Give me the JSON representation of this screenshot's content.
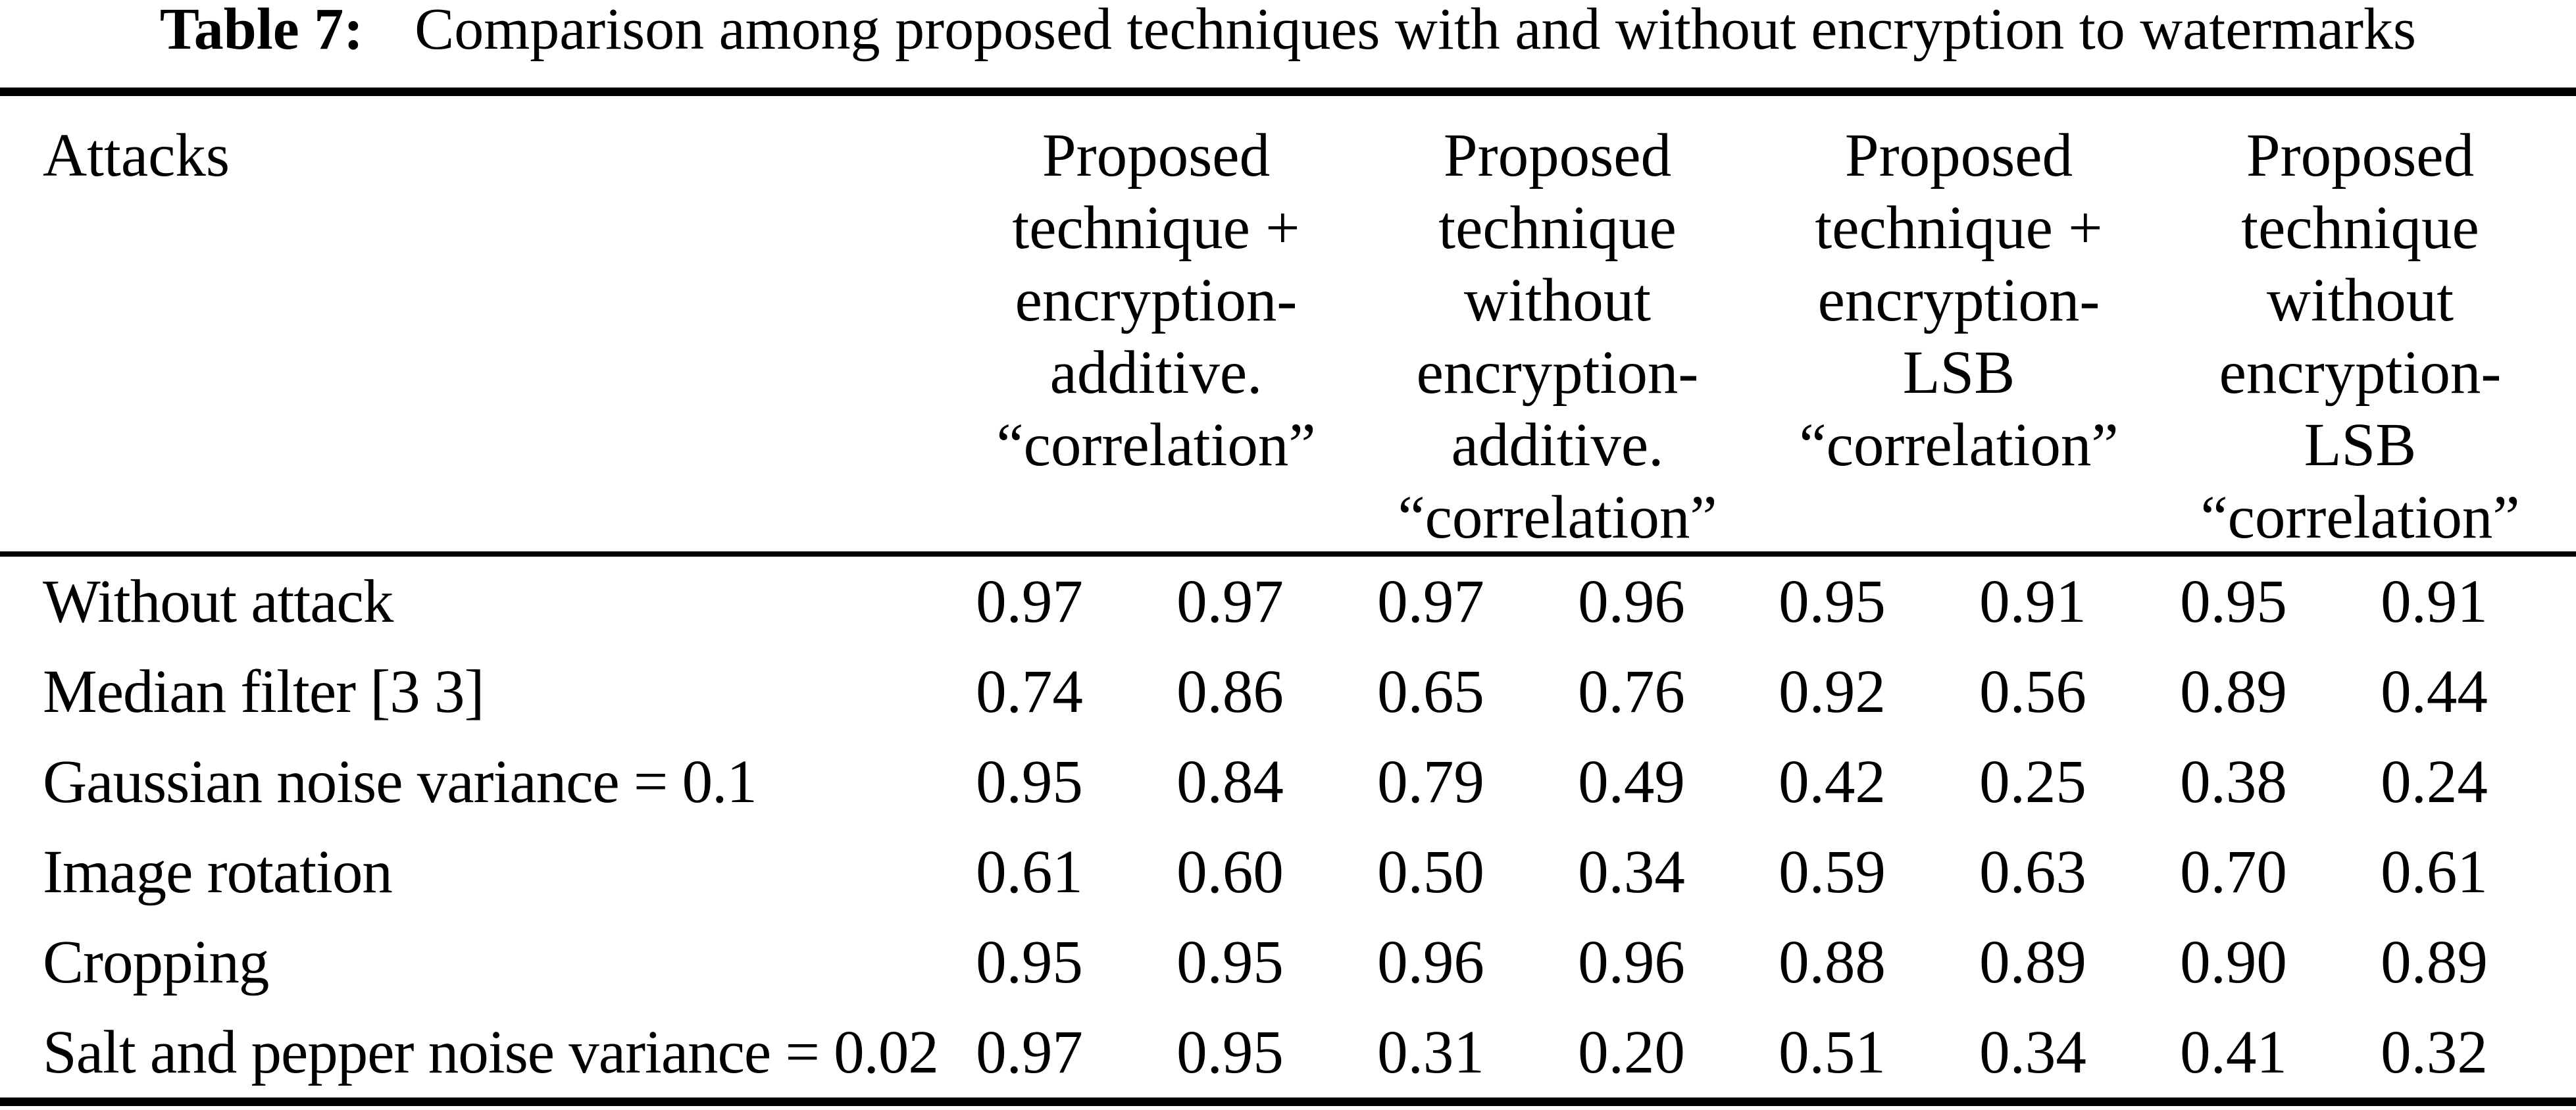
{
  "colors": {
    "ink": "#000000",
    "paper": "#ffffff"
  },
  "caption": {
    "label": "Table 7:",
    "text": "Comparison among proposed techniques with and without encryption to watermarks"
  },
  "table": {
    "attack_column_header": "Attacks",
    "column_groups": [
      {
        "lines": [
          "Proposed",
          "technique +",
          "encryption-",
          "additive.",
          "“correlation”"
        ]
      },
      {
        "lines": [
          "Proposed",
          "technique",
          "without",
          "encryption-",
          "additive.",
          "“correlation”"
        ]
      },
      {
        "lines": [
          "Proposed",
          "technique +",
          "encryption-",
          "LSB",
          "“correlation”"
        ]
      },
      {
        "lines": [
          "Proposed",
          "technique",
          "without",
          "encryption-",
          "LSB",
          "“correlation”"
        ]
      }
    ],
    "rows": [
      {
        "attack": "Without attack",
        "values": [
          "0.97",
          "0.97",
          "0.97",
          "0.96",
          "0.95",
          "0.91",
          "0.95",
          "0.91"
        ]
      },
      {
        "attack": "Median filter [3 3]",
        "values": [
          "0.74",
          "0.86",
          "0.65",
          "0.76",
          "0.92",
          "0.56",
          "0.89",
          "0.44"
        ]
      },
      {
        "attack": "Gaussian noise variance = 0.1",
        "values": [
          "0.95",
          "0.84",
          "0.79",
          "0.49",
          "0.42",
          "0.25",
          "0.38",
          "0.24"
        ]
      },
      {
        "attack": "Image rotation",
        "values": [
          "0.61",
          "0.60",
          "0.50",
          "0.34",
          "0.59",
          "0.63",
          "0.70",
          "0.61"
        ]
      },
      {
        "attack": "Cropping",
        "values": [
          "0.95",
          "0.95",
          "0.96",
          "0.96",
          "0.88",
          "0.89",
          "0.90",
          "0.89"
        ]
      },
      {
        "attack": "Salt and pepper noise variance = 0.02",
        "values": [
          "0.97",
          "0.95",
          "0.31",
          "0.20",
          "0.51",
          "0.34",
          "0.41",
          "0.32"
        ]
      }
    ]
  }
}
